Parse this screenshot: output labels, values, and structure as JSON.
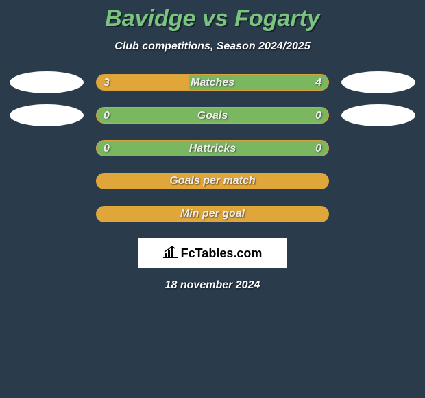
{
  "title": "Bavidge vs Fogarty",
  "subtitle": "Club competitions, Season 2024/2025",
  "colors": {
    "background": "#2a3b4c",
    "title": "#7bc47f",
    "bar_green": "#7bb661",
    "bar_yellow": "#e0a63a",
    "oval": "#ffffff"
  },
  "rows": [
    {
      "label": "Matches",
      "left": "3",
      "right": "4",
      "fill_pct": 40,
      "track": "green",
      "show_ovals": true,
      "show_vals": true
    },
    {
      "label": "Goals",
      "left": "0",
      "right": "0",
      "fill_pct": 0,
      "track": "green",
      "show_ovals": true,
      "show_vals": true
    },
    {
      "label": "Hattricks",
      "left": "0",
      "right": "0",
      "fill_pct": 0,
      "track": "green",
      "show_ovals": false,
      "show_vals": true
    },
    {
      "label": "Goals per match",
      "left": "",
      "right": "",
      "fill_pct": 0,
      "track": "yellow",
      "show_ovals": false,
      "show_vals": false
    },
    {
      "label": "Min per goal",
      "left": "",
      "right": "",
      "fill_pct": 0,
      "track": "yellow",
      "show_ovals": false,
      "show_vals": false
    }
  ],
  "brand": "FcTables.com",
  "date": "18 november 2024"
}
